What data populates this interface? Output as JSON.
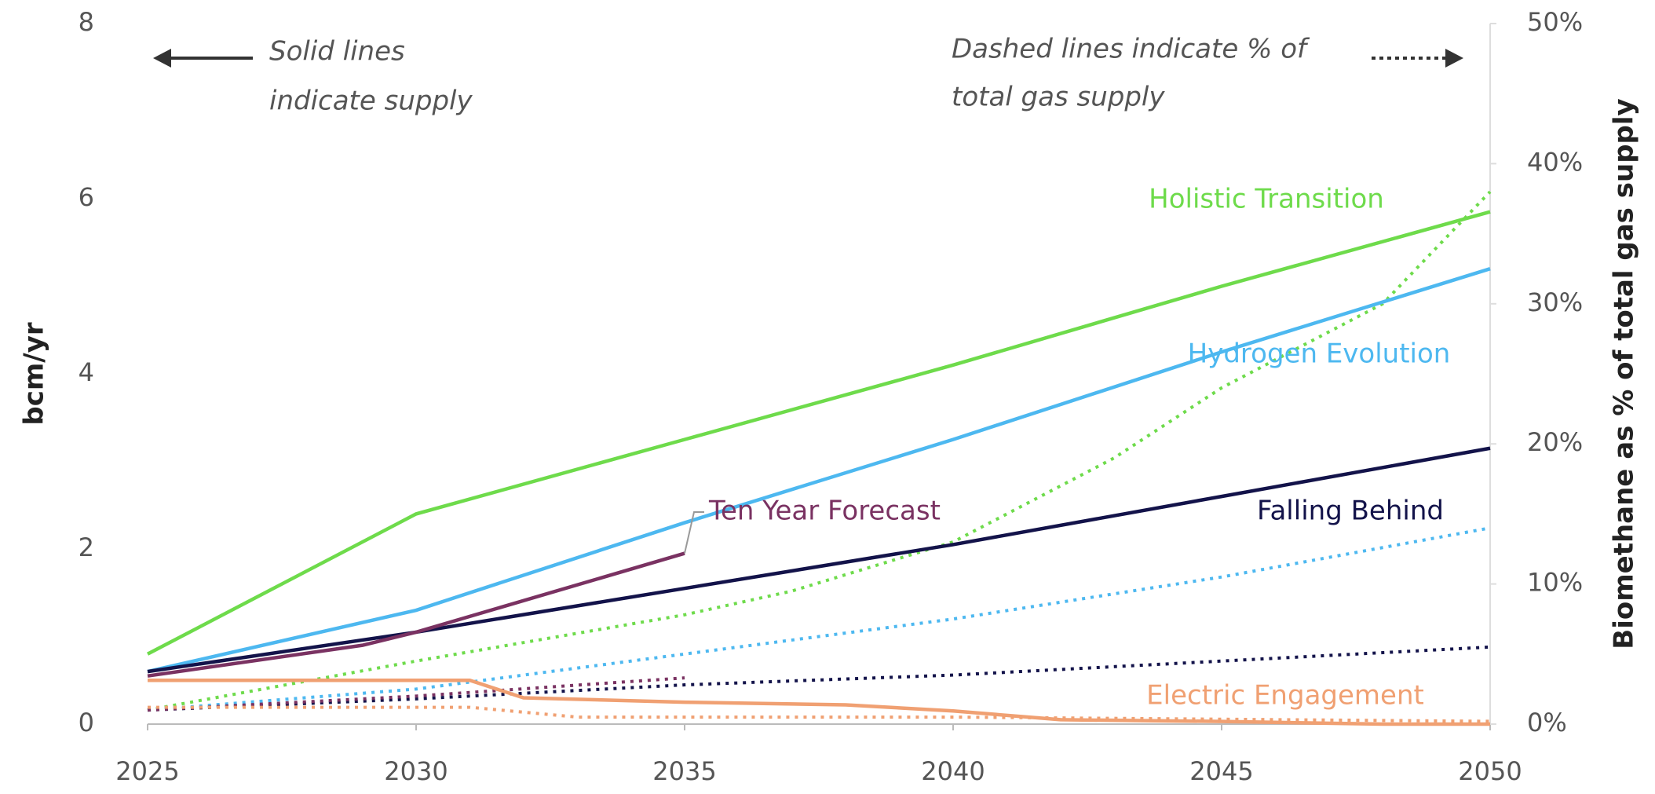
{
  "chart_data": {
    "type": "line",
    "y_label": "bcm/yr",
    "y2_label": "Biomethane as % of total gas supply",
    "annotations": [
      {
        "lines": [
          "Solid lines",
          "indicate supply"
        ]
      },
      {
        "lines": [
          "Dashed lines indicate % of",
          "total gas supply"
        ]
      }
    ],
    "xlim": [
      2025,
      2050
    ],
    "xticks": [
      2025,
      2030,
      2035,
      2040,
      2045,
      2050
    ],
    "ylim": [
      0,
      8
    ],
    "yticks": [
      0,
      2,
      4,
      6,
      8
    ],
    "y2lim": [
      0,
      50
    ],
    "y2ticks": [
      {
        "value": 0,
        "label": "0%"
      },
      {
        "value": 10,
        "label": "10%"
      },
      {
        "value": 20,
        "label": "20%"
      },
      {
        "value": 30,
        "label": "30%"
      },
      {
        "value": 40,
        "label": "40%"
      },
      {
        "value": 50,
        "label": "50%"
      }
    ],
    "grid": false,
    "series": [
      {
        "name": "Holistic Transition",
        "color": "#6edb4b",
        "x": [
          2025,
          2030,
          2035,
          2040,
          2045,
          2050
        ],
        "values": [
          0.8,
          2.4,
          3.25,
          4.1,
          5.0,
          5.85
        ],
        "share_x": [
          2025,
          2030,
          2035,
          2037,
          2040,
          2043,
          2045,
          2047,
          2048,
          2050
        ],
        "share_values": [
          1,
          4.5,
          7.8,
          9.5,
          13,
          19,
          24,
          28,
          30,
          38
        ]
      },
      {
        "name": "Hydrogen Evolution",
        "color": "#4db8f0",
        "x": [
          2025,
          2030,
          2035,
          2040,
          2045,
          2050
        ],
        "values": [
          0.6,
          1.3,
          2.3,
          3.25,
          4.25,
          5.2
        ],
        "share_x": [
          2025,
          2030,
          2035,
          2040,
          2045,
          2050
        ],
        "share_values": [
          1,
          2.5,
          5,
          7.5,
          10.5,
          14
        ]
      },
      {
        "name": "Falling Behind",
        "color": "#13134a",
        "x": [
          2025,
          2030,
          2035,
          2040,
          2045,
          2050
        ],
        "values": [
          0.6,
          1.05,
          1.55,
          2.05,
          2.6,
          3.15
        ],
        "share_x": [
          2025,
          2030,
          2035,
          2040,
          2045,
          2050
        ],
        "share_values": [
          1,
          1.8,
          2.8,
          3.5,
          4.5,
          5.5
        ]
      },
      {
        "name": "Ten Year Forecast",
        "color": "#7a3262",
        "x": [
          2025,
          2029,
          2030,
          2035
        ],
        "values": [
          0.55,
          0.9,
          1.05,
          1.95
        ],
        "share_x": [
          2025,
          2030,
          2035
        ],
        "share_values": [
          1,
          2,
          3.3
        ]
      },
      {
        "name": "Electric Engagement",
        "color": "#f0a072",
        "x": [
          2025,
          2031,
          2032,
          2035,
          2038,
          2040,
          2042,
          2045,
          2048,
          2050
        ],
        "values": [
          0.5,
          0.5,
          0.3,
          0.25,
          0.22,
          0.15,
          0.05,
          0.03,
          0,
          0
        ],
        "share_x": [
          2025,
          2031,
          2033,
          2040,
          2050
        ],
        "share_values": [
          1.2,
          1.2,
          0.5,
          0.5,
          0.2
        ]
      }
    ]
  }
}
